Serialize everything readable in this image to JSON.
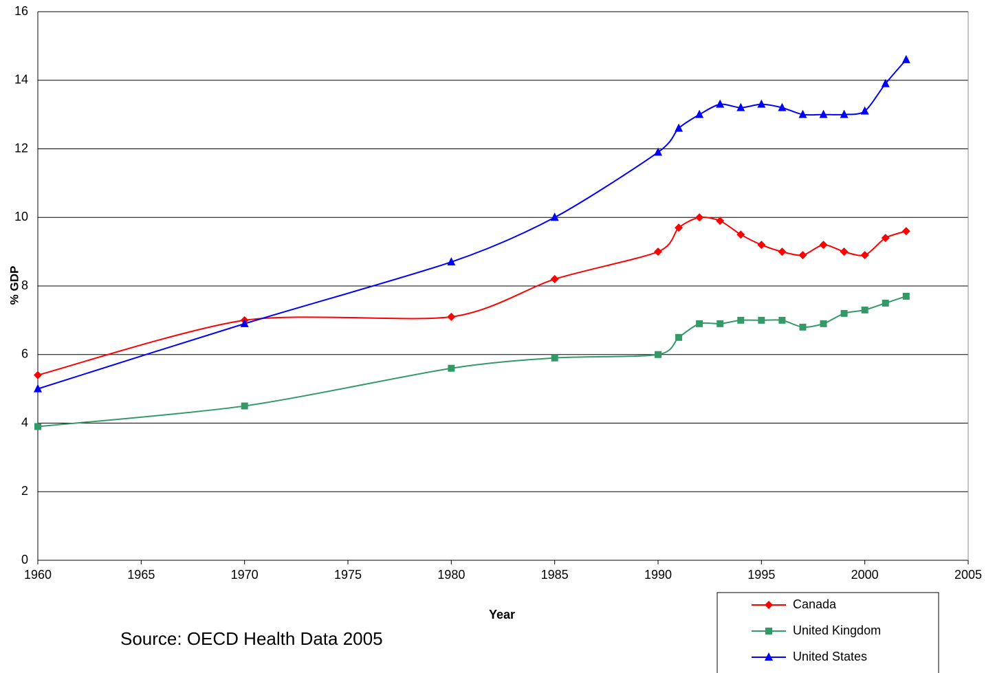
{
  "chart_data": {
    "type": "line",
    "x_label": "Year",
    "y_label": "% GDP",
    "source": "Source: OECD Health Data 2005",
    "x": [
      1960,
      1970,
      1980,
      1985,
      1990,
      1991,
      1992,
      1993,
      1994,
      1995,
      1996,
      1997,
      1998,
      1999,
      2000,
      2001,
      2002
    ],
    "series": [
      {
        "name": "Canada",
        "color": "#ff0000",
        "marker": "diamond",
        "values": [
          5.4,
          7.0,
          7.1,
          8.2,
          9.0,
          9.7,
          10.0,
          9.9,
          9.5,
          9.2,
          9.0,
          8.9,
          9.2,
          9.0,
          8.9,
          9.4,
          9.6
        ]
      },
      {
        "name": "United Kingdom",
        "color": "#339966",
        "marker": "square",
        "values": [
          3.9,
          4.5,
          5.6,
          5.9,
          6.0,
          6.5,
          6.9,
          6.9,
          7.0,
          7.0,
          7.0,
          6.8,
          6.9,
          7.2,
          7.3,
          7.5,
          7.7
        ]
      },
      {
        "name": "United States",
        "color": "#0000ff",
        "marker": "triangle",
        "values": [
          5.0,
          6.9,
          8.7,
          10.0,
          11.9,
          12.6,
          13.0,
          13.3,
          13.2,
          13.3,
          13.2,
          13.0,
          13.0,
          13.0,
          13.1,
          13.9,
          14.6
        ]
      }
    ],
    "xlim": [
      1960,
      2005
    ],
    "xticks": [
      1960,
      1965,
      1970,
      1975,
      1980,
      1985,
      1990,
      1995,
      2000,
      2005
    ],
    "ylim": [
      0,
      16
    ],
    "yticks": [
      0,
      2,
      4,
      6,
      8,
      10,
      12,
      14,
      16
    ],
    "grid": true,
    "legend": "bottom-right"
  }
}
